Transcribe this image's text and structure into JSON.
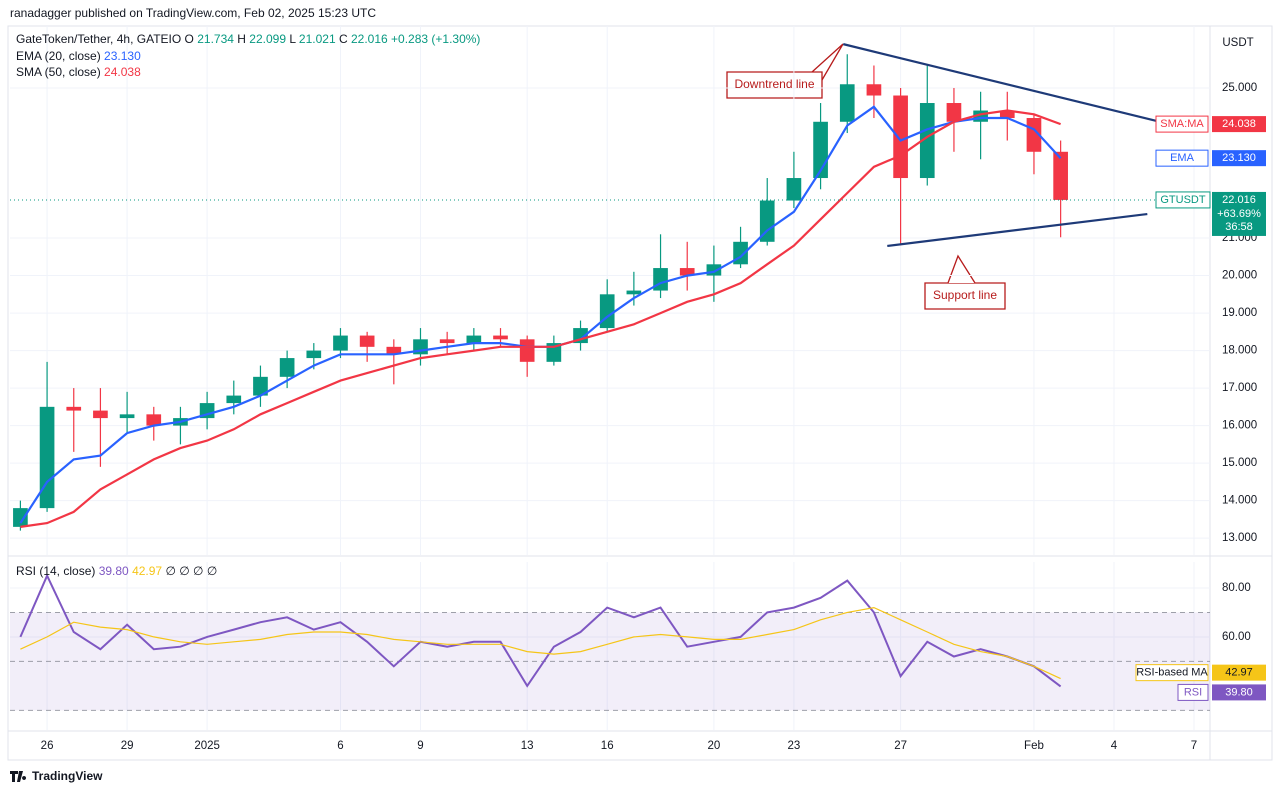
{
  "header": {
    "published": "ranadagger published on TradingView.com, Feb 02, 2025 15:23 UTC",
    "brand": "TradingView"
  },
  "chart_data": [
    {
      "type": "candlestick",
      "title": "GateToken/Tether, 4h, GATEIO",
      "currency": "USDT",
      "ohlc_legend": [
        {
          "key": "O",
          "value": "21.734"
        },
        {
          "key": "H",
          "value": "22.099"
        },
        {
          "key": "L",
          "value": "21.021"
        },
        {
          "key": "C",
          "value": "22.016"
        }
      ],
      "change": "+0.283 (+1.30%)",
      "x": [
        -1,
        0,
        1,
        2,
        3,
        4,
        5,
        6,
        7,
        8,
        9,
        10,
        11,
        12,
        13,
        14,
        15,
        16,
        17,
        18,
        19,
        20,
        21,
        22,
        23,
        24,
        25,
        26,
        27,
        28,
        29,
        30,
        31,
        32,
        33,
        34,
        35,
        36,
        37,
        38
      ],
      "open": [
        13.3,
        13.8,
        16.5,
        16.4,
        16.2,
        16.3,
        16.0,
        16.2,
        16.6,
        16.8,
        17.3,
        17.8,
        18.0,
        18.4,
        18.1,
        17.9,
        18.3,
        18.2,
        18.4,
        18.3,
        17.7,
        18.2,
        18.6,
        19.5,
        19.6,
        20.2,
        20.0,
        20.3,
        20.9,
        22.0,
        22.6,
        24.1,
        25.1,
        24.8,
        22.6,
        24.6,
        24.1,
        24.4,
        24.2,
        23.3
      ],
      "high": [
        14.0,
        17.7,
        17.0,
        17.0,
        16.9,
        16.5,
        16.5,
        16.9,
        17.2,
        17.6,
        18.0,
        18.2,
        18.6,
        18.5,
        18.3,
        18.6,
        18.5,
        18.6,
        18.6,
        18.4,
        18.4,
        18.8,
        19.9,
        20.1,
        21.1,
        20.9,
        20.8,
        21.3,
        22.6,
        23.3,
        24.6,
        25.9,
        25.6,
        25.0,
        25.6,
        25.0,
        24.9,
        24.9,
        24.3,
        23.6
      ],
      "low": [
        13.2,
        13.7,
        15.3,
        14.9,
        15.8,
        15.6,
        15.5,
        15.9,
        16.3,
        16.5,
        17.0,
        17.5,
        17.8,
        17.7,
        17.1,
        17.6,
        17.9,
        18.0,
        18.1,
        17.3,
        17.6,
        18.0,
        18.5,
        19.2,
        19.4,
        19.6,
        19.3,
        20.2,
        20.8,
        21.8,
        22.3,
        23.8,
        24.2,
        20.8,
        22.4,
        23.3,
        23.1,
        23.6,
        22.7,
        21.021
      ],
      "close": [
        13.8,
        16.5,
        16.4,
        16.2,
        16.3,
        16.0,
        16.2,
        16.6,
        16.8,
        17.3,
        17.8,
        18.0,
        18.4,
        18.1,
        17.9,
        18.3,
        18.2,
        18.4,
        18.3,
        17.7,
        18.2,
        18.6,
        19.5,
        19.6,
        20.2,
        20.0,
        20.3,
        20.9,
        22.0,
        22.6,
        24.1,
        25.1,
        24.8,
        22.6,
        24.6,
        24.1,
        24.4,
        24.2,
        23.3,
        22.016
      ],
      "up_color": "#089981",
      "down_color": "#f23645",
      "price_tag": {
        "name": "GTUSDT",
        "value": 22.016,
        "change": "+63.69%",
        "countdown": "36:58",
        "color": "#089981"
      },
      "series": [
        {
          "name": "EMA (20, close)",
          "tag": "EMA",
          "color": "#2962ff",
          "last_label": "23.130",
          "values": [
            13.4,
            14.5,
            15.1,
            15.2,
            15.8,
            16.0,
            16.1,
            16.3,
            16.5,
            16.8,
            17.2,
            17.6,
            17.9,
            17.9,
            17.9,
            18.0,
            18.1,
            18.2,
            18.2,
            18.1,
            18.1,
            18.3,
            18.9,
            19.4,
            19.8,
            20.0,
            20.1,
            20.5,
            21.2,
            21.7,
            22.8,
            24.0,
            24.5,
            23.6,
            23.9,
            24.1,
            24.2,
            24.2,
            23.9,
            23.13
          ]
        },
        {
          "name": "SMA (50, close)",
          "tag": "SMA:MA",
          "color": "#f23645",
          "last_label": "24.038",
          "values": [
            13.3,
            13.4,
            13.7,
            14.3,
            14.7,
            15.1,
            15.4,
            15.6,
            15.9,
            16.3,
            16.6,
            16.9,
            17.2,
            17.4,
            17.6,
            17.8,
            17.9,
            18.0,
            18.1,
            18.1,
            18.1,
            18.3,
            18.5,
            18.7,
            19.0,
            19.3,
            19.5,
            19.8,
            20.3,
            20.8,
            21.5,
            22.2,
            22.9,
            23.2,
            23.7,
            24.1,
            24.3,
            24.4,
            24.3,
            24.038
          ]
        }
      ],
      "xlim": [
        -1.39,
        43.6
      ],
      "xticks": [
        {
          "value": 0,
          "label": "26"
        },
        {
          "value": 3,
          "label": "29"
        },
        {
          "value": 6,
          "label": "2025"
        },
        {
          "value": 11,
          "label": "6"
        },
        {
          "value": 14,
          "label": "9"
        },
        {
          "value": 18,
          "label": "13"
        },
        {
          "value": 21,
          "label": "16"
        },
        {
          "value": 25,
          "label": "20"
        },
        {
          "value": 28,
          "label": "23"
        },
        {
          "value": 32,
          "label": "27"
        },
        {
          "value": 37,
          "label": "Feb"
        },
        {
          "value": 40,
          "label": "4"
        },
        {
          "value": 43,
          "label": "7"
        }
      ],
      "ylim": [
        12.55,
        26.6
      ],
      "yticks": [
        {
          "value": 13,
          "label": "13.000"
        },
        {
          "value": 14,
          "label": "14.000"
        },
        {
          "value": 15,
          "label": "15.000"
        },
        {
          "value": 16,
          "label": "16.000"
        },
        {
          "value": 17,
          "label": "17.000"
        },
        {
          "value": 18,
          "label": "18.000"
        },
        {
          "value": 19,
          "label": "19.000"
        },
        {
          "value": 20,
          "label": "20.000"
        },
        {
          "value": 21,
          "label": "21.000"
        },
        {
          "value": 25,
          "label": "25.000"
        }
      ],
      "grid": true,
      "trend_lines": [
        {
          "label": "Downtrend line",
          "color": "#1e3a78",
          "x": [
            29.85,
            41.9
          ],
          "y": [
            26.17,
            24.07
          ]
        },
        {
          "label": "Support line",
          "color": "#1e3a78",
          "x": [
            31.5,
            41.25
          ],
          "y": [
            20.79,
            21.64
          ]
        }
      ]
    },
    {
      "type": "line",
      "title": "RSI (14, close)",
      "extras": "∅ ∅ ∅ ∅",
      "x": [
        -1,
        0,
        1,
        2,
        3,
        4,
        5,
        6,
        7,
        8,
        9,
        10,
        11,
        12,
        13,
        14,
        15,
        16,
        17,
        18,
        19,
        20,
        21,
        22,
        23,
        24,
        25,
        26,
        27,
        28,
        29,
        30,
        31,
        32,
        33,
        34,
        35,
        36,
        37,
        38
      ],
      "series": [
        {
          "name": "RSI",
          "color": "#7e57c2",
          "last_label": "39.80",
          "values": [
            60,
            85,
            62,
            55,
            65,
            55,
            56,
            60,
            63,
            66,
            68,
            63,
            66,
            58,
            48,
            58,
            56,
            58,
            58,
            40,
            56,
            62,
            72,
            68,
            72,
            56,
            58,
            60,
            70,
            72,
            76,
            83,
            70,
            44,
            58,
            52,
            55,
            52,
            48,
            39.8
          ]
        },
        {
          "name": "RSI-based MA",
          "color": "#f5c518",
          "last_label": "42.97",
          "values": [
            55,
            60,
            66,
            64,
            63,
            60,
            58,
            57,
            58,
            59,
            61,
            62,
            62,
            61,
            59,
            58,
            57,
            57,
            57,
            54,
            53,
            54,
            57,
            60,
            61,
            60,
            59,
            59,
            61,
            63,
            67,
            70,
            72,
            67,
            62,
            57,
            54,
            52,
            48,
            42.97
          ]
        }
      ],
      "ylim": [
        22,
        90.6
      ],
      "yticks": [
        {
          "value": 60,
          "label": "60.00"
        },
        {
          "value": 80,
          "label": "80.00"
        }
      ],
      "levels": [
        70,
        50,
        30
      ],
      "band": [
        30,
        70
      ],
      "band_color": "#7e57c2"
    }
  ]
}
